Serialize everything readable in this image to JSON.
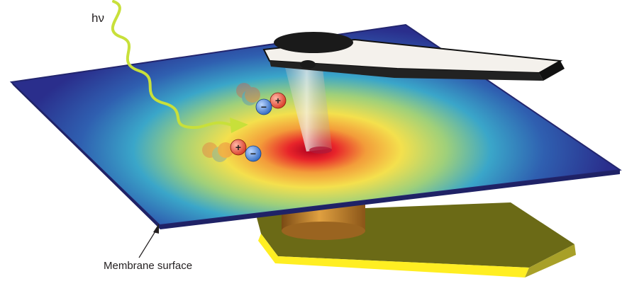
{
  "labels": {
    "photon": "hν",
    "membrane": "Membrane surface"
  },
  "charges": {
    "positive": "+",
    "negative": "−"
  },
  "colors": {
    "membrane_edge": "#2a2e8c",
    "heat_center": "#c8102e",
    "heat_mid": "#f4e04d",
    "heat_outer": "#3aa6c9",
    "photon_wave": "#c8e03a",
    "pedestal_top": "#ffee22",
    "cylinder": "#c8852a",
    "positive_charge": "#e8503a",
    "negative_charge": "#3f7fd0"
  },
  "icons": {
    "photon": "wavy-arrow",
    "cantilever": "afm-cantilever-tip",
    "particles": "ion-pair"
  }
}
